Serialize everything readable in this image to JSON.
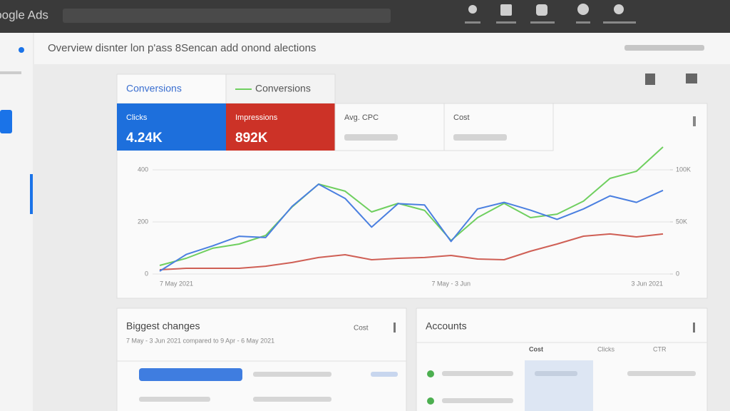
{
  "header": {
    "product": "Google Ads",
    "title": "Overview disnter lon p'ass 8Sencan add onond alections"
  },
  "tabs": [
    "Conversions",
    "Conversions"
  ],
  "metrics": [
    {
      "label": "Clicks",
      "value": "4.24K"
    },
    {
      "label": "Impressions",
      "value": "892K"
    },
    {
      "label": "Avg. CPC"
    },
    {
      "label": "Cost"
    }
  ],
  "chart_data": {
    "type": "line",
    "categories": [
      "7 May 2021",
      null,
      null,
      null,
      null,
      null,
      null,
      null,
      null,
      null,
      null,
      "7 May - 3 Jun",
      null,
      null,
      null,
      null,
      null,
      null,
      null,
      "3 Jun 2021"
    ],
    "series": [
      {
        "name": "Clicks",
        "color": "#4a7fe0",
        "values": [
          11,
          75,
          108,
          145,
          140,
          260,
          345,
          290,
          180,
          270,
          265,
          125,
          250,
          275,
          245,
          210,
          250,
          300,
          275,
          321
        ]
      },
      {
        "name": "Conversions",
        "color": "#6fcf5f",
        "axis": "y2",
        "values": [
          8200,
          15100,
          24700,
          28800,
          37000,
          64400,
          86300,
          79500,
          59600,
          67800,
          61000,
          32200,
          54100,
          67800,
          54100,
          57500,
          69900,
          91800,
          98600,
          121900
        ]
      },
      {
        "name": "Impressions",
        "color": "#cf5f55",
        "axis": "y2",
        "values": [
          4100,
          5500,
          5500,
          5500,
          7500,
          11000,
          15800,
          18500,
          13700,
          15100,
          15800,
          17800,
          14400,
          13700,
          21900,
          28800,
          36300,
          38400,
          35600,
          38400
        ]
      }
    ],
    "ylim": [
      0,
      500
    ],
    "yticks": [
      0,
      200,
      400
    ],
    "y2lim": [
      0,
      125000
    ],
    "y2ticks": [
      0,
      {
        "value": 50000,
        "label": "50K"
      },
      {
        "value": 100000,
        "label": "100K"
      }
    ],
    "grid": true
  },
  "cards": {
    "biggest_changes": {
      "title": "Biggest changes",
      "metric": "Cost",
      "subtitle": "7 May - 3 Jun 2021 compared to 9 Apr - 6 May 2021"
    },
    "accounts": {
      "title": "Accounts",
      "columns": [
        "Cost",
        "Clicks",
        "CTR"
      ]
    }
  }
}
